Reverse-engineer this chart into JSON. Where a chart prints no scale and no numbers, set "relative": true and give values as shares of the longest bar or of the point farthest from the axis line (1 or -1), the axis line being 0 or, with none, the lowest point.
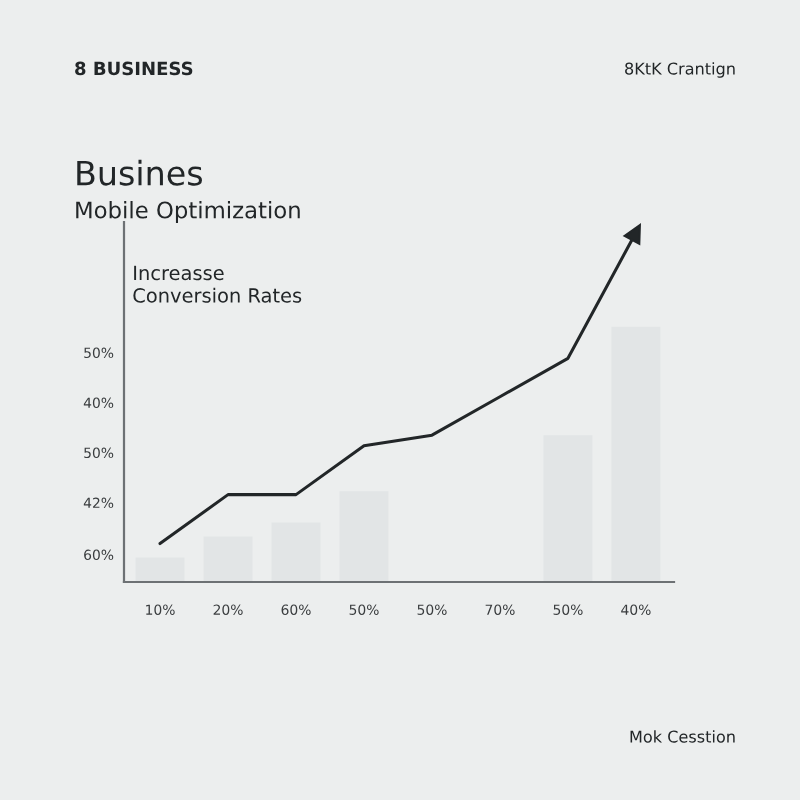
{
  "chart_data": {
    "type": "bar",
    "title": "Busines",
    "subtitle": "Mobile Optimization",
    "ylabel": "Increasse\nConversion Rates",
    "annotations": [
      "8 BUSINESS",
      "8KtK Crantign",
      "50%",
      "40%",
      "50%",
      "42%",
      "60%",
      "Mok Cesstion"
    ],
    "categories": [
      "10%",
      "20%",
      "60%",
      "50%",
      "50%",
      "70%",
      "50%",
      "40%"
    ],
    "relative": true,
    "series": [
      {
        "color": "#e2e5e6",
        "values": [
          0.07,
          0.13,
          0.17,
          0.26,
          null,
          null,
          0.42,
          0.73
        ]
      },
      {
        "type": "line",
        "color": "#222628",
        "values": [
          0.11,
          0.25,
          0.25,
          0.39,
          0.42,
          0.53,
          0.64,
          1.0
        ]
      }
    ],
    "line_style": "solid"
  }
}
